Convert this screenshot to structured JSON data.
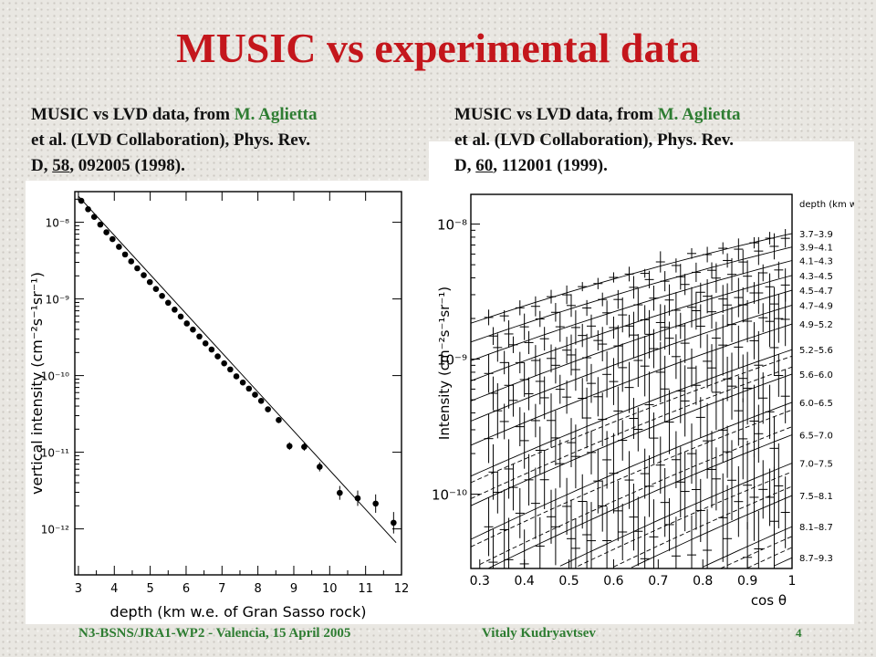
{
  "slide": {
    "title": "MUSIC vs experimental data",
    "footer_left": "N3-BSNS/JRA1-WP2 - Valencia, 15 April 2005",
    "footer_author": "Vitaly Kudryavtsev",
    "page_number": "4"
  },
  "captions": {
    "left": {
      "prefix": "MUSIC vs LVD data, from ",
      "authors": "M. Aglietta",
      "collab": "et al. (LVD Collaboration), Phys. Rev.",
      "journal": "D, ",
      "volume": "58",
      "rest": ", 092005 (1998)."
    },
    "right": {
      "prefix": "MUSIC vs LVD data, from ",
      "authors": "M. Aglietta",
      "collab": "et al. (LVD Collaboration), Phys. Rev.",
      "journal": "D, ",
      "volume": "60",
      "rest": ", 112001 (1999)."
    }
  },
  "colors": {
    "title": "#c4161c",
    "footer": "#2e7d32",
    "authors": "#2e7d32"
  },
  "chart_data": [
    {
      "type": "scatter",
      "xlabel": "depth (km w.e. of Gran Sasso rock)",
      "ylabel": "vertical intensity (cm⁻²s⁻¹sr⁻¹)",
      "x_ticks": [
        "3",
        "4",
        "5",
        "6",
        "7",
        "8",
        "9",
        "10",
        "11",
        "12"
      ],
      "y_ticks": [
        "10⁻⁸",
        "10⁻⁹",
        "10⁻¹⁰",
        "10⁻¹¹",
        "10⁻¹²"
      ],
      "xlim": [
        2.9,
        12.0
      ],
      "ylim_log10": [
        -12.6,
        -7.6
      ],
      "yscale": "log",
      "series": [
        {
          "x": [
            3.08,
            3.27,
            3.44,
            3.61,
            3.78,
            3.95,
            4.13,
            4.3,
            4.47,
            4.64,
            4.82,
            4.99,
            5.16,
            5.33,
            5.5,
            5.68,
            5.85,
            6.02,
            6.19,
            6.37,
            6.54,
            6.71,
            6.88,
            7.06,
            7.23,
            7.4,
            7.58,
            7.75,
            7.92,
            8.09,
            8.28,
            8.58,
            8.88,
            9.29,
            9.72,
            10.28,
            10.78,
            11.28,
            11.78
          ],
          "log10_y": [
            -7.72,
            -7.83,
            -7.93,
            -8.03,
            -8.13,
            -8.22,
            -8.32,
            -8.42,
            -8.51,
            -8.6,
            -8.69,
            -8.78,
            -8.87,
            -8.96,
            -9.05,
            -9.14,
            -9.23,
            -9.32,
            -9.4,
            -9.49,
            -9.58,
            -9.66,
            -9.75,
            -9.84,
            -9.92,
            -10.01,
            -10.09,
            -10.17,
            -10.25,
            -10.33,
            -10.44,
            -10.58,
            -10.92,
            -10.93,
            -11.19,
            -11.53,
            -11.6,
            -11.67,
            -11.92
          ],
          "err_log10": [
            0.01,
            0.01,
            0.01,
            0.01,
            0.01,
            0.01,
            0.01,
            0.01,
            0.01,
            0.01,
            0.01,
            0.01,
            0.01,
            0.01,
            0.01,
            0.01,
            0.01,
            0.01,
            0.01,
            0.01,
            0.01,
            0.01,
            0.01,
            0.01,
            0.01,
            0.01,
            0.01,
            0.02,
            0.02,
            0.03,
            0.03,
            0.04,
            0.05,
            0.05,
            0.06,
            0.09,
            0.1,
            0.12,
            0.14
          ]
        },
        {
          "line": [
            [
              3.0,
              -7.66
            ],
            [
              11.85,
              -12.18
            ]
          ]
        }
      ]
    },
    {
      "type": "line",
      "xlabel": "cos θ",
      "ylabel": "Intensity (cm⁻²s⁻¹sr⁻¹)",
      "x_ticks": [
        "0.3",
        "0.4",
        "0.5",
        "0.6",
        "0.7",
        "0.8",
        "0.9",
        "1"
      ],
      "y_ticks": [
        "10⁻⁸",
        "10⁻⁹",
        "10⁻¹⁰"
      ],
      "xlim": [
        0.28,
        1.0
      ],
      "ylim_log10": [
        -10.55,
        -7.78
      ],
      "yscale": "log",
      "legend_title": "depth (km w.e.)",
      "bands": [
        "3.7–3.9",
        "3.9–4.1",
        "4.1–4.3",
        "4.3–4.5",
        "4.5–4.7",
        "4.7–4.9",
        "4.9–5.2",
        "5.2–5.6",
        "5.6–6.0",
        "6.0–6.5",
        "6.5–7.0",
        "7.0–7.5",
        "7.5–8.1",
        "8.1–8.7",
        "8.7–9.3"
      ],
      "band_log10_at_cos1": [
        -8.07,
        -8.17,
        -8.27,
        -8.38,
        -8.49,
        -8.6,
        -8.74,
        -8.93,
        -9.11,
        -9.32,
        -9.56,
        -9.77,
        -10.01,
        -10.24,
        -10.47
      ]
    }
  ]
}
